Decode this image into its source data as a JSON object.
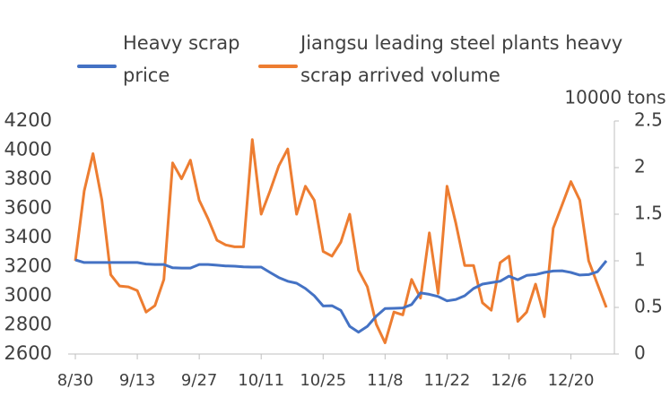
{
  "chart_data": {
    "type": "line",
    "categories": [
      "8/30",
      null,
      null,
      null,
      null,
      null,
      null,
      "9/13",
      null,
      null,
      null,
      null,
      null,
      null,
      "9/27",
      null,
      null,
      null,
      null,
      null,
      null,
      "10/11",
      null,
      null,
      null,
      null,
      null,
      null,
      "10/25",
      null,
      null,
      null,
      null,
      null,
      null,
      "11/8",
      null,
      null,
      null,
      null,
      null,
      null,
      "11/22",
      null,
      null,
      null,
      null,
      null,
      null,
      "12/6",
      null,
      null,
      null,
      null,
      null,
      null,
      "12/20",
      null,
      null,
      null,
      null
    ],
    "series": [
      {
        "name": "Heavy scrap price",
        "color": "#4472c4",
        "values": [
          3246,
          3228,
          3228,
          3228,
          3228,
          3228,
          3228,
          3228,
          3218,
          3215,
          3215,
          3192,
          3190,
          3190,
          3215,
          3215,
          3210,
          3205,
          3203,
          3198,
          3197,
          3197,
          3160,
          3125,
          3100,
          3086,
          3050,
          3000,
          2930,
          2932,
          2900,
          2790,
          2750,
          2790,
          2860,
          2912,
          2914,
          2916,
          2940,
          3020,
          3010,
          2995,
          2965,
          2975,
          3000,
          3050,
          3080,
          3090,
          3100,
          3135,
          3110,
          3140,
          3145,
          3160,
          3170,
          3172,
          3160,
          3142,
          3145,
          3165,
          3240
        ]
      },
      {
        "name": "Jiangsu leading steel plants heavy scrap arrived volume",
        "color": "#ed7d31",
        "axis": "y2",
        "values": [
          1.0,
          1.75,
          2.15,
          1.65,
          0.85,
          0.73,
          0.72,
          0.68,
          0.45,
          0.52,
          0.8,
          2.05,
          1.88,
          2.08,
          1.65,
          1.45,
          1.22,
          1.17,
          1.15,
          1.15,
          2.3,
          1.5,
          1.75,
          2.02,
          2.2,
          1.5,
          1.8,
          1.65,
          1.1,
          1.05,
          1.2,
          1.5,
          0.9,
          0.72,
          0.32,
          0.12,
          0.45,
          0.42,
          0.8,
          0.6,
          1.3,
          0.65,
          1.8,
          1.4,
          0.95,
          0.95,
          0.55,
          0.47,
          0.98,
          1.05,
          0.35,
          0.45,
          0.75,
          0.4,
          1.35,
          1.6,
          1.85,
          1.65,
          1.0,
          0.75,
          0.5
        ]
      }
    ],
    "ylim": [
      2600,
      4200
    ],
    "yticks": [
      2600,
      2800,
      3000,
      3200,
      3400,
      3600,
      3800,
      4000,
      4200
    ],
    "y2lim": [
      0,
      2.5
    ],
    "y2ticks": [
      0,
      0.5,
      1,
      1.5,
      2,
      2.5
    ],
    "y2_label": "10000 tons",
    "grid": false
  }
}
